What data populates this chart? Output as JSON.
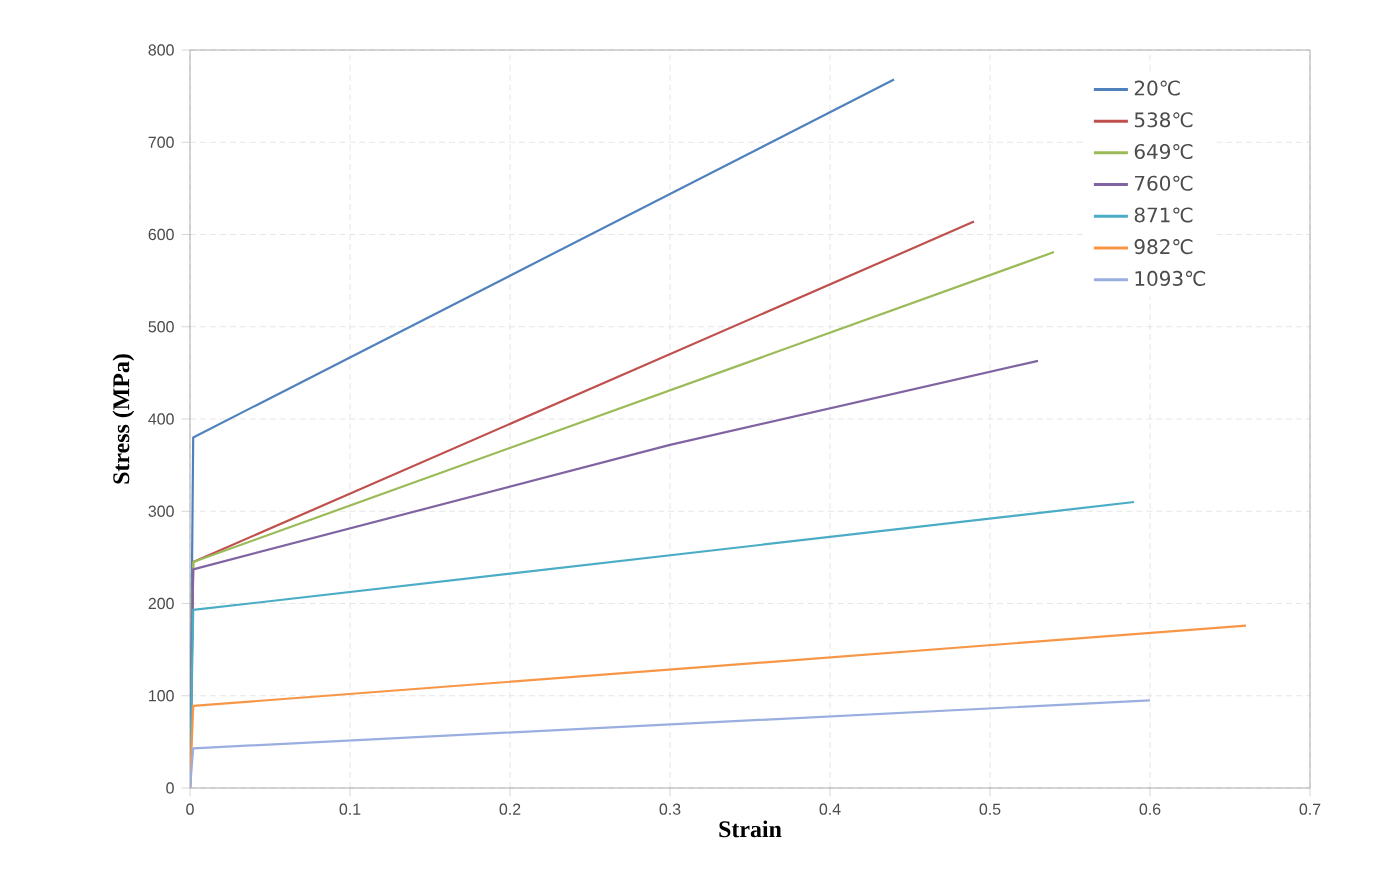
{
  "chart_data": {
    "type": "line",
    "xlabel": "Strain",
    "ylabel": "Stress (MPa)",
    "xlim": [
      0,
      0.7
    ],
    "ylim": [
      0,
      800
    ],
    "xticks": [
      0,
      0.1,
      0.2,
      0.3,
      0.4,
      0.5,
      0.6,
      0.7
    ],
    "yticks": [
      0,
      100,
      200,
      300,
      400,
      500,
      600,
      700,
      800
    ],
    "grid": true,
    "legend": "top right",
    "marker": "none",
    "line_style": "solid",
    "series": [
      {
        "name": "20℃",
        "color": "#4f81bd",
        "x": [
          0,
          0.002,
          0.44
        ],
        "values": [
          0,
          380,
          768
        ]
      },
      {
        "name": "538℃",
        "color": "#c0504d",
        "x": [
          0,
          0.002,
          0.49
        ],
        "values": [
          0,
          245,
          614
        ]
      },
      {
        "name": "649℃",
        "color": "#9bbb59",
        "x": [
          0,
          0.002,
          0.54
        ],
        "values": [
          0,
          245,
          581
        ]
      },
      {
        "name": "760℃",
        "color": "#8064a2",
        "x": [
          0,
          0.002,
          0.3,
          0.53
        ],
        "values": [
          0,
          237,
          372,
          463
        ]
      },
      {
        "name": "871℃",
        "color": "#4bacc6",
        "x": [
          0,
          0.002,
          0.59
        ],
        "values": [
          0,
          193,
          310
        ]
      },
      {
        "name": "982℃",
        "color": "#f79646",
        "x": [
          0,
          0.002,
          0.66
        ],
        "values": [
          0,
          89,
          176
        ]
      },
      {
        "name": "1093℃",
        "color": "#9aaee0",
        "x": [
          0,
          0.002,
          0.6
        ],
        "values": [
          0,
          43,
          95
        ]
      }
    ]
  }
}
